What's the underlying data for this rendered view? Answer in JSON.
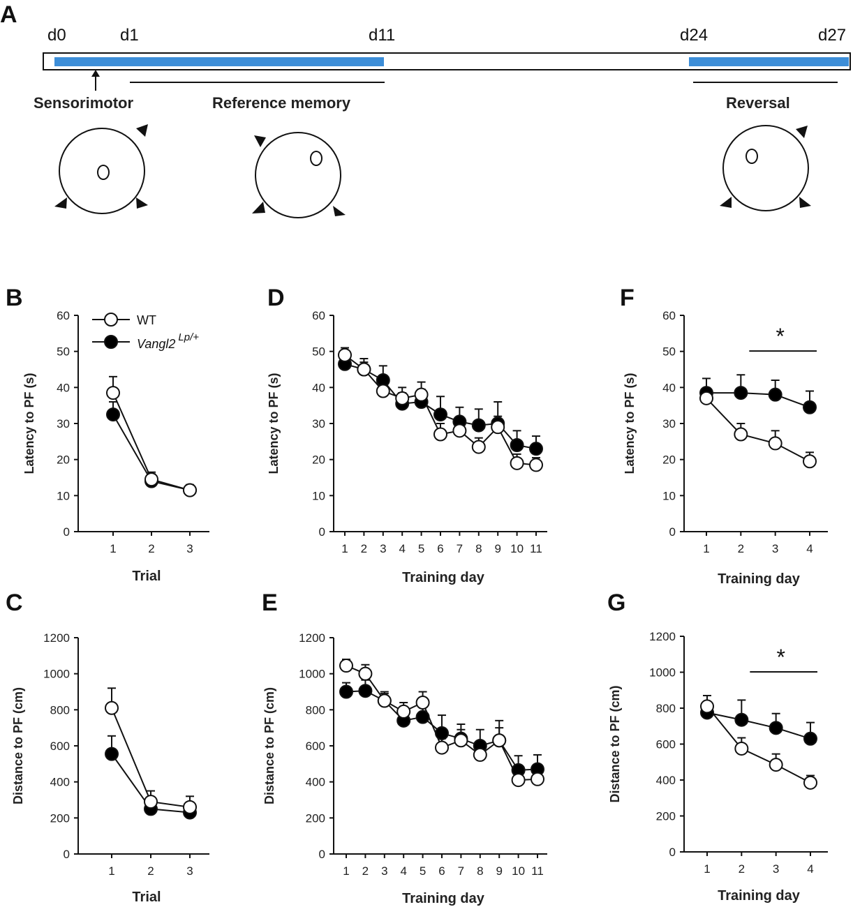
{
  "timeline": {
    "panel_letter": "A",
    "day_labels": [
      "d0",
      "d1",
      "d11",
      "d24",
      "d27"
    ],
    "phases": [
      "Sensorimotor",
      "Reference memory",
      "Reversal"
    ],
    "bar_color": "#3d8ed8"
  },
  "legend": {
    "wt": "WT",
    "mut_main": "Vangl2",
    "mut_sup": "Lp/+"
  },
  "colors": {
    "wt_fill": "#ffffff",
    "mut_fill": "#000000",
    "line": "#111111"
  },
  "chart_data": [
    {
      "id": "B",
      "type": "line",
      "letter": "B",
      "xlabel": "Trial",
      "ylabel": "Latency to PF (s)",
      "categories": [
        "1",
        "2",
        "3"
      ],
      "ylim": [
        0,
        60
      ],
      "yticks": [
        0,
        10,
        20,
        30,
        40,
        50,
        60
      ],
      "series": [
        {
          "name": "WT",
          "values": [
            38.5,
            14.5,
            11.5
          ],
          "err": [
            4.5,
            2,
            1.5
          ]
        },
        {
          "name": "Vangl2 Lp/+",
          "values": [
            32.5,
            14,
            11.5
          ],
          "err": [
            3.5,
            2,
            1.5
          ]
        }
      ]
    },
    {
      "id": "C",
      "type": "line",
      "letter": "C",
      "xlabel": "Trial",
      "ylabel": "Distance to PF (cm)",
      "categories": [
        "1",
        "2",
        "3"
      ],
      "ylim": [
        0,
        1200
      ],
      "yticks": [
        0,
        200,
        400,
        600,
        800,
        1000,
        1200
      ],
      "series": [
        {
          "name": "WT",
          "values": [
            810,
            290,
            260
          ],
          "err": [
            110,
            60,
            60
          ]
        },
        {
          "name": "Vangl2 Lp/+",
          "values": [
            555,
            250,
            230
          ],
          "err": [
            100,
            40,
            40
          ]
        }
      ]
    },
    {
      "id": "D",
      "type": "line",
      "letter": "D",
      "xlabel": "Training day",
      "ylabel": "Latency to PF (s)",
      "categories": [
        "1",
        "2",
        "3",
        "4",
        "5",
        "6",
        "7",
        "8",
        "9",
        "10",
        "11"
      ],
      "ylim": [
        0,
        60
      ],
      "yticks": [
        0,
        10,
        20,
        30,
        40,
        50,
        60
      ],
      "series": [
        {
          "name": "WT",
          "values": [
            49,
            45,
            39,
            37,
            38,
            27,
            28,
            23.5,
            29,
            19,
            18.5
          ],
          "err": [
            2,
            2,
            2,
            3,
            3.5,
            3,
            2.5,
            2.5,
            3,
            2.5,
            2
          ]
        },
        {
          "name": "Vangl2 Lp/+",
          "values": [
            46.5,
            45,
            42,
            35.5,
            36,
            32.5,
            30.5,
            29.5,
            30,
            24,
            23
          ],
          "err": [
            2.5,
            3,
            4,
            3,
            3.5,
            5,
            4,
            4.5,
            6,
            4,
            3.5
          ]
        }
      ]
    },
    {
      "id": "E",
      "type": "line",
      "letter": "E",
      "xlabel": "Training day",
      "ylabel": "Distance to PF (cm)",
      "categories": [
        "1",
        "2",
        "3",
        "4",
        "5",
        "6",
        "7",
        "8",
        "9",
        "10",
        "11"
      ],
      "ylim": [
        0,
        1200
      ],
      "yticks": [
        0,
        200,
        400,
        600,
        800,
        1000,
        1200
      ],
      "series": [
        {
          "name": "WT",
          "values": [
            1045,
            1000,
            850,
            790,
            840,
            590,
            630,
            550,
            630,
            410,
            415
          ],
          "err": [
            35,
            50,
            40,
            50,
            60,
            50,
            60,
            50,
            70,
            50,
            40
          ]
        },
        {
          "name": "Vangl2 Lp/+",
          "values": [
            900,
            905,
            850,
            740,
            760,
            670,
            640,
            600,
            630,
            465,
            470
          ],
          "err": [
            50,
            60,
            50,
            50,
            60,
            100,
            80,
            90,
            110,
            80,
            80
          ]
        }
      ]
    },
    {
      "id": "F",
      "type": "line",
      "letter": "F",
      "xlabel": "Training day",
      "ylabel": "Latency to PF (s)",
      "categories": [
        "1",
        "2",
        "3",
        "4"
      ],
      "ylim": [
        0,
        60
      ],
      "yticks": [
        0,
        10,
        20,
        30,
        40,
        50,
        60
      ],
      "sig": {
        "from": 2,
        "to": 4,
        "label": "*"
      },
      "series": [
        {
          "name": "WT",
          "values": [
            37,
            27,
            24.5,
            19.5
          ],
          "err": [
            2,
            3,
            3.5,
            2.5
          ]
        },
        {
          "name": "Vangl2 Lp/+",
          "values": [
            38.5,
            38.5,
            38,
            34.5
          ],
          "err": [
            4,
            5,
            4,
            4.5
          ]
        }
      ]
    },
    {
      "id": "G",
      "type": "line",
      "letter": "G",
      "xlabel": "Training day",
      "ylabel": "Distance to PF (cm)",
      "categories": [
        "1",
        "2",
        "3",
        "4"
      ],
      "ylim": [
        0,
        1200
      ],
      "yticks": [
        0,
        200,
        400,
        600,
        800,
        1000,
        1200
      ],
      "sig": {
        "from": 2,
        "to": 4,
        "label": "*"
      },
      "series": [
        {
          "name": "WT",
          "values": [
            810,
            575,
            485,
            385
          ],
          "err": [
            60,
            60,
            60,
            40
          ]
        },
        {
          "name": "Vangl2 Lp/+",
          "values": [
            775,
            735,
            690,
            630
          ],
          "err": [
            60,
            110,
            80,
            90
          ]
        }
      ]
    }
  ]
}
